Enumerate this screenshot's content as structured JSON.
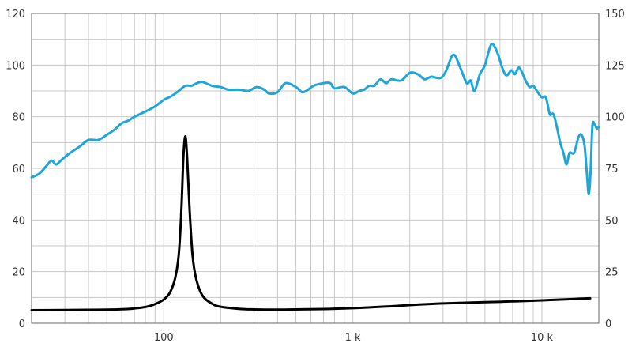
{
  "chart_data": {
    "type": "line",
    "title": "",
    "xlabel": "",
    "ylabel": "",
    "y2label": "",
    "x_scale": "log",
    "xlim": [
      20,
      20000
    ],
    "ylim": [
      0,
      120
    ],
    "y2lim": [
      0,
      150
    ],
    "grid": true,
    "x_tick_labels": [
      {
        "value": 100,
        "label": "100"
      },
      {
        "value": 1000,
        "label": "1 k"
      },
      {
        "value": 10000,
        "label": "10 k"
      }
    ],
    "y_tick_labels": [
      "0",
      "20",
      "40",
      "60",
      "80",
      "100",
      "120"
    ],
    "y_tick_values": [
      0,
      20,
      40,
      60,
      80,
      100,
      120
    ],
    "y2_tick_labels": [
      "0",
      "25",
      "50",
      "75",
      "100",
      "125",
      "150"
    ],
    "y2_tick_values": [
      0,
      25,
      50,
      75,
      100,
      125,
      150
    ],
    "colors": {
      "frequency_response": "#1fa6d6",
      "impedance": "#000000",
      "grid": "#c8c8c8",
      "axis": "#666666"
    },
    "series": [
      {
        "axis": "left",
        "color": "#1fa6d6",
        "points": [
          [
            20,
            56.5
          ],
          [
            22,
            58
          ],
          [
            24,
            61
          ],
          [
            25.5,
            63
          ],
          [
            27,
            61.5
          ],
          [
            29,
            63.5
          ],
          [
            32,
            66
          ],
          [
            36,
            68.5
          ],
          [
            40,
            71
          ],
          [
            45,
            71
          ],
          [
            50,
            73
          ],
          [
            55,
            75
          ],
          [
            60,
            77.5
          ],
          [
            65,
            78.5
          ],
          [
            70,
            80
          ],
          [
            80,
            82
          ],
          [
            90,
            84
          ],
          [
            100,
            86.5
          ],
          [
            110,
            88
          ],
          [
            120,
            90
          ],
          [
            130,
            92
          ],
          [
            140,
            92
          ],
          [
            150,
            93
          ],
          [
            160,
            93.5
          ],
          [
            180,
            92
          ],
          [
            200,
            91.5
          ],
          [
            220,
            90.5
          ],
          [
            250,
            90.5
          ],
          [
            280,
            90
          ],
          [
            310,
            91.5
          ],
          [
            340,
            90.5
          ],
          [
            360,
            89
          ],
          [
            400,
            89.5
          ],
          [
            440,
            93
          ],
          [
            500,
            91.5
          ],
          [
            540,
            89.5
          ],
          [
            580,
            90.5
          ],
          [
            620,
            92
          ],
          [
            700,
            93
          ],
          [
            760,
            93
          ],
          [
            800,
            91
          ],
          [
            900,
            91.5
          ],
          [
            1000,
            89
          ],
          [
            1080,
            90
          ],
          [
            1150,
            90.5
          ],
          [
            1220,
            92
          ],
          [
            1300,
            92
          ],
          [
            1400,
            94.5
          ],
          [
            1500,
            93
          ],
          [
            1600,
            94.5
          ],
          [
            1800,
            94
          ],
          [
            2000,
            97
          ],
          [
            2200,
            96.5
          ],
          [
            2400,
            94.5
          ],
          [
            2600,
            95.5
          ],
          [
            2900,
            95
          ],
          [
            3100,
            97.5
          ],
          [
            3400,
            104
          ],
          [
            3700,
            99
          ],
          [
            4000,
            93
          ],
          [
            4200,
            94
          ],
          [
            4400,
            90
          ],
          [
            4700,
            96.5
          ],
          [
            5000,
            100
          ],
          [
            5400,
            108
          ],
          [
            5800,
            105
          ],
          [
            6200,
            98.5
          ],
          [
            6500,
            96
          ],
          [
            6900,
            98
          ],
          [
            7200,
            96.5
          ],
          [
            7600,
            99
          ],
          [
            8200,
            94
          ],
          [
            8600,
            91.5
          ],
          [
            9000,
            92
          ],
          [
            9500,
            89.5
          ],
          [
            10000,
            87.5
          ],
          [
            10500,
            87.5
          ],
          [
            11000,
            81
          ],
          [
            11500,
            81
          ],
          [
            12000,
            76
          ],
          [
            12500,
            70
          ],
          [
            13000,
            66
          ],
          [
            13500,
            61.5
          ],
          [
            14000,
            66
          ],
          [
            14800,
            66
          ],
          [
            15600,
            72
          ],
          [
            16200,
            73
          ],
          [
            16800,
            69
          ],
          [
            17300,
            58
          ],
          [
            17700,
            50
          ],
          [
            18100,
            59
          ],
          [
            18500,
            76.5
          ],
          [
            19000,
            77
          ],
          [
            19500,
            75.5
          ],
          [
            20000,
            76
          ]
        ]
      },
      {
        "axis": "right",
        "color": "#000000",
        "points": [
          [
            20,
            6.3
          ],
          [
            30,
            6.4
          ],
          [
            40,
            6.5
          ],
          [
            50,
            6.6
          ],
          [
            60,
            6.8
          ],
          [
            70,
            7.2
          ],
          [
            80,
            7.9
          ],
          [
            90,
            9.3
          ],
          [
            100,
            11.5
          ],
          [
            108,
            15
          ],
          [
            115,
            22
          ],
          [
            120,
            33
          ],
          [
            124,
            55
          ],
          [
            127,
            80
          ],
          [
            130,
            90.5
          ],
          [
            133,
            80
          ],
          [
            137,
            55
          ],
          [
            142,
            33
          ],
          [
            148,
            22
          ],
          [
            160,
            13.5
          ],
          [
            180,
            9.5
          ],
          [
            200,
            8
          ],
          [
            250,
            7
          ],
          [
            300,
            6.7
          ],
          [
            400,
            6.6
          ],
          [
            500,
            6.7
          ],
          [
            700,
            6.9
          ],
          [
            1000,
            7.3
          ],
          [
            1500,
            8.1
          ],
          [
            2000,
            8.8
          ],
          [
            3000,
            9.6
          ],
          [
            5000,
            10.2
          ],
          [
            7000,
            10.6
          ],
          [
            10000,
            11.1
          ],
          [
            15000,
            11.8
          ],
          [
            18000,
            12.1
          ]
        ]
      }
    ]
  }
}
